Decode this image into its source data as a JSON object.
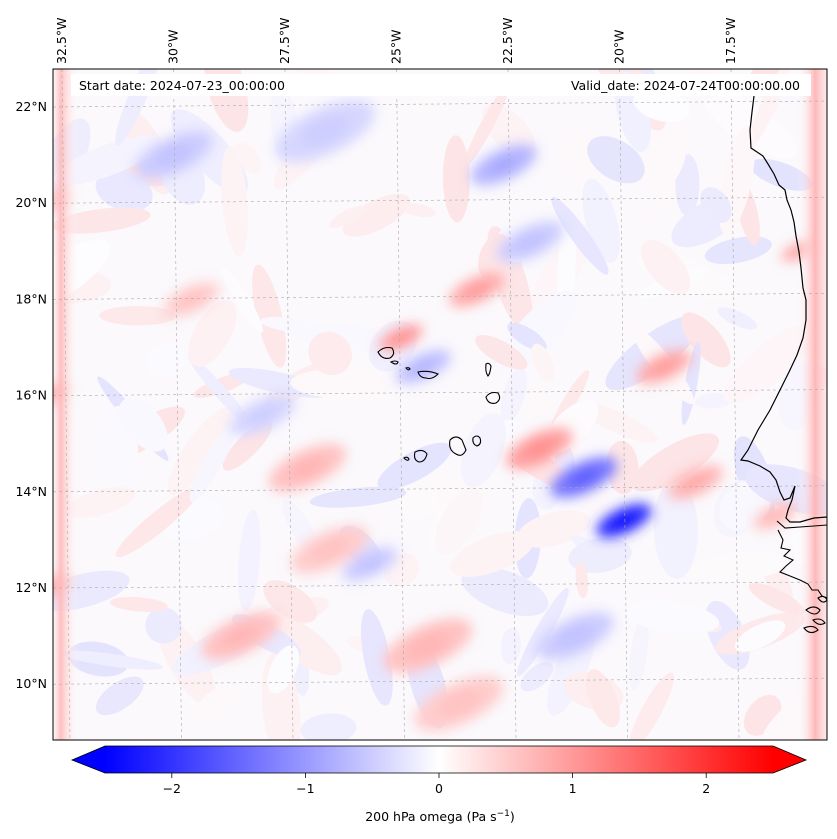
{
  "chart_data": {
    "type": "heatmap",
    "title": "",
    "header": {
      "start_date": "Start date: 2024-07-23_00:00:00",
      "valid_date": "Valid_date: 2024-07-24T00:00:00.00"
    },
    "longitude_labels": [
      {
        "value": -32.5,
        "label": "32.5°W"
      },
      {
        "value": -30.0,
        "label": "30°W"
      },
      {
        "value": -27.5,
        "label": "27.5°W"
      },
      {
        "value": -25.0,
        "label": "25°W"
      },
      {
        "value": -22.5,
        "label": "22.5°W"
      },
      {
        "value": -20.0,
        "label": "20°W"
      },
      {
        "value": -17.5,
        "label": "17.5°W"
      }
    ],
    "latitude_labels": [
      {
        "value": 22,
        "label": "22°N"
      },
      {
        "value": 20,
        "label": "20°N"
      },
      {
        "value": 18,
        "label": "18°N"
      },
      {
        "value": 16,
        "label": "16°N"
      },
      {
        "value": 14,
        "label": "14°N"
      },
      {
        "value": 12,
        "label": "12°N"
      },
      {
        "value": 10,
        "label": "10°N"
      }
    ],
    "grid": true,
    "colorbar": {
      "label": "200 hPa omega (Pa s⁻¹)",
      "label_main": "200 hPa omega (Pa s",
      "label_sup": "−1",
      "label_end": ")",
      "vmin": -2.5,
      "vmax": 2.5,
      "extend": "both",
      "colormap": "bwr",
      "ticks": [
        {
          "value": -2,
          "label": "−2"
        },
        {
          "value": -1,
          "label": "−1"
        },
        {
          "value": 0,
          "label": "0"
        },
        {
          "value": 1,
          "label": "1"
        },
        {
          "value": 2,
          "label": "2"
        }
      ],
      "low_color": "#0000ff",
      "mid_color": "#ffffff",
      "high_color": "#ff0000"
    },
    "features": [
      {
        "lon": -19.9,
        "lat": 13.4,
        "value": -2.0,
        "spread": 0.5
      },
      {
        "lon": -20.8,
        "lat": 14.3,
        "value": -1.3,
        "spread": 0.6
      },
      {
        "lon": -21.8,
        "lat": 14.9,
        "value": 0.9,
        "spread": 0.6
      },
      {
        "lon": -24.9,
        "lat": 17.2,
        "value": 0.9,
        "spread": 0.4
      },
      {
        "lon": -23.2,
        "lat": 18.2,
        "value": 0.8,
        "spread": 0.5
      },
      {
        "lon": -24.4,
        "lat": 16.6,
        "value": -0.6,
        "spread": 0.5
      },
      {
        "lon": -22.6,
        "lat": 20.8,
        "value": -0.7,
        "spread": 0.6
      },
      {
        "lon": -24.3,
        "lat": 10.8,
        "value": 0.6,
        "spread": 0.8
      },
      {
        "lon": -28.5,
        "lat": 11.0,
        "value": 0.6,
        "spread": 0.7
      },
      {
        "lon": -26.5,
        "lat": 12.8,
        "value": 0.5,
        "spread": 0.7
      },
      {
        "lon": -27.0,
        "lat": 14.5,
        "value": 0.6,
        "spread": 0.7
      },
      {
        "lon": -21.0,
        "lat": 11.0,
        "value": -0.5,
        "spread": 0.7
      },
      {
        "lon": -19.0,
        "lat": 16.6,
        "value": 0.8,
        "spread": 0.5
      },
      {
        "lon": -18.3,
        "lat": 14.2,
        "value": 0.7,
        "spread": 0.5
      },
      {
        "lon": -29.6,
        "lat": 18.0,
        "value": 0.5,
        "spread": 0.5
      },
      {
        "lon": -22.0,
        "lat": 19.2,
        "value": -0.5,
        "spread": 0.6
      },
      {
        "lon": -30.0,
        "lat": 21.0,
        "value": -0.5,
        "spread": 0.7
      },
      {
        "lon": -25.6,
        "lat": 12.5,
        "value": -0.5,
        "spread": 0.5
      },
      {
        "lon": -23.6,
        "lat": 9.6,
        "value": 0.5,
        "spread": 0.8
      },
      {
        "lon": -26.6,
        "lat": 21.5,
        "value": -0.4,
        "spread": 0.9
      },
      {
        "lon": -28.0,
        "lat": 15.6,
        "value": -0.4,
        "spread": 0.6
      },
      {
        "lon": -32.8,
        "lat": 16.0,
        "value": 0.7,
        "spread": 0.35
      },
      {
        "lon": -32.8,
        "lat": 12.0,
        "value": 0.7,
        "spread": 0.4
      },
      {
        "lon": -32.8,
        "lat": 20.0,
        "value": 0.5,
        "spread": 0.4
      },
      {
        "lon": -16.0,
        "lat": 19.0,
        "value": 0.8,
        "spread": 0.3
      },
      {
        "lon": -16.5,
        "lat": 13.5,
        "value": 0.6,
        "spread": 0.4
      }
    ]
  }
}
